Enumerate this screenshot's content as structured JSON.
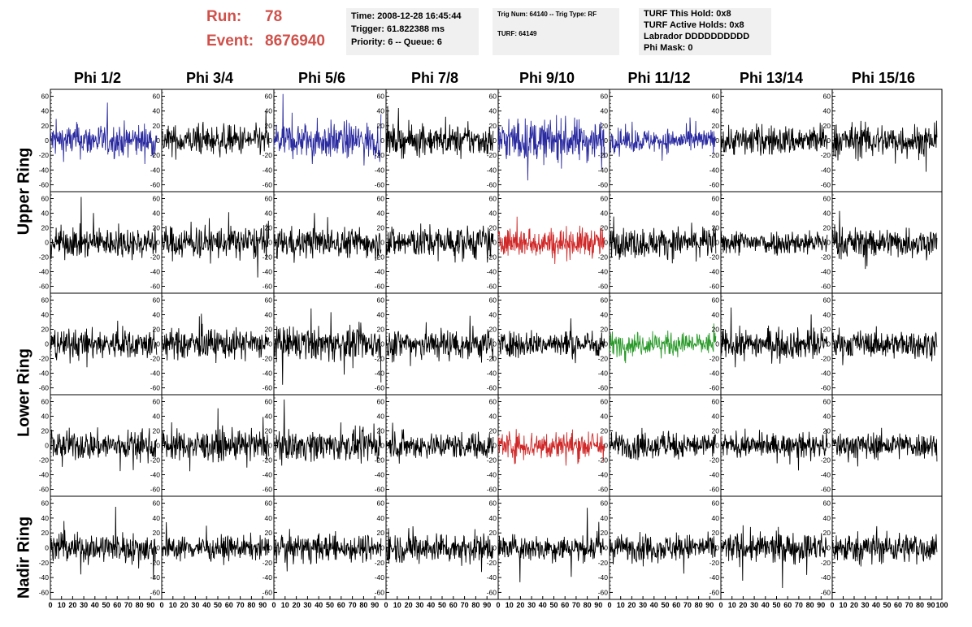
{
  "run": {
    "run_label": "Run:",
    "run_value": "78",
    "event_label": "Event:",
    "event_value": "8676940"
  },
  "info_box_1": {
    "lines": [
      "Time: 2008-12-28 16:45:44",
      "Trigger: 61.822388 ms",
      "Priority: 6 -- Queue: 6"
    ]
  },
  "info_box_2": {
    "lines": [
      "Trig Num: 64140 -- Trig Type: RF",
      "TURF: 64149"
    ]
  },
  "info_box_3": {
    "lines": [
      "TURF This Hold: 0x8",
      "TURF Active Holds: 0x8",
      "Labrador DDDDDDDDDD",
      "Phi Mask: 0"
    ]
  },
  "colors": {
    "black": "#000000",
    "blue": "#2a2aa0",
    "red": "#d02828",
    "green": "#2a9a2a",
    "title_red": "#d0504a"
  },
  "chart_data": {
    "type": "line",
    "columns": [
      "Phi 1/2",
      "Phi 3/4",
      "Phi 5/6",
      "Phi 7/8",
      "Phi 9/10",
      "Phi 11/12",
      "Phi 13/14",
      "Phi 15/16"
    ],
    "ring_labels": [
      "Upper Ring",
      "Lower Ring",
      "Nadir Ring"
    ],
    "rows": 5,
    "ylim": [
      -65,
      65
    ],
    "xlim": [
      0,
      100
    ],
    "y_ticks": [
      -60,
      -40,
      -20,
      0,
      20,
      40,
      60
    ],
    "x_ticks": [
      0,
      10,
      20,
      30,
      40,
      50,
      60,
      70,
      80,
      90,
      100
    ],
    "trace_colors": [
      [
        "blue",
        "black",
        "blue",
        "black",
        "blue",
        "blue",
        "black",
        "black"
      ],
      [
        "black",
        "black",
        "black",
        "black",
        "red",
        "black",
        "black",
        "black"
      ],
      [
        "black",
        "black",
        "black",
        "black",
        "black",
        "green",
        "black",
        "black"
      ],
      [
        "black",
        "black",
        "black",
        "black",
        "red",
        "black",
        "black",
        "black"
      ],
      [
        "black",
        "black",
        "black",
        "black",
        "black",
        "black",
        "black",
        "black"
      ]
    ],
    "trace_amplitude": [
      [
        20,
        18,
        22,
        18,
        25,
        14,
        18,
        20
      ],
      [
        18,
        20,
        18,
        20,
        18,
        18,
        15,
        18
      ],
      [
        18,
        18,
        20,
        20,
        16,
        14,
        18,
        16
      ],
      [
        18,
        18,
        18,
        16,
        18,
        16,
        14,
        16
      ],
      [
        18,
        14,
        16,
        18,
        16,
        16,
        18,
        18
      ]
    ]
  }
}
